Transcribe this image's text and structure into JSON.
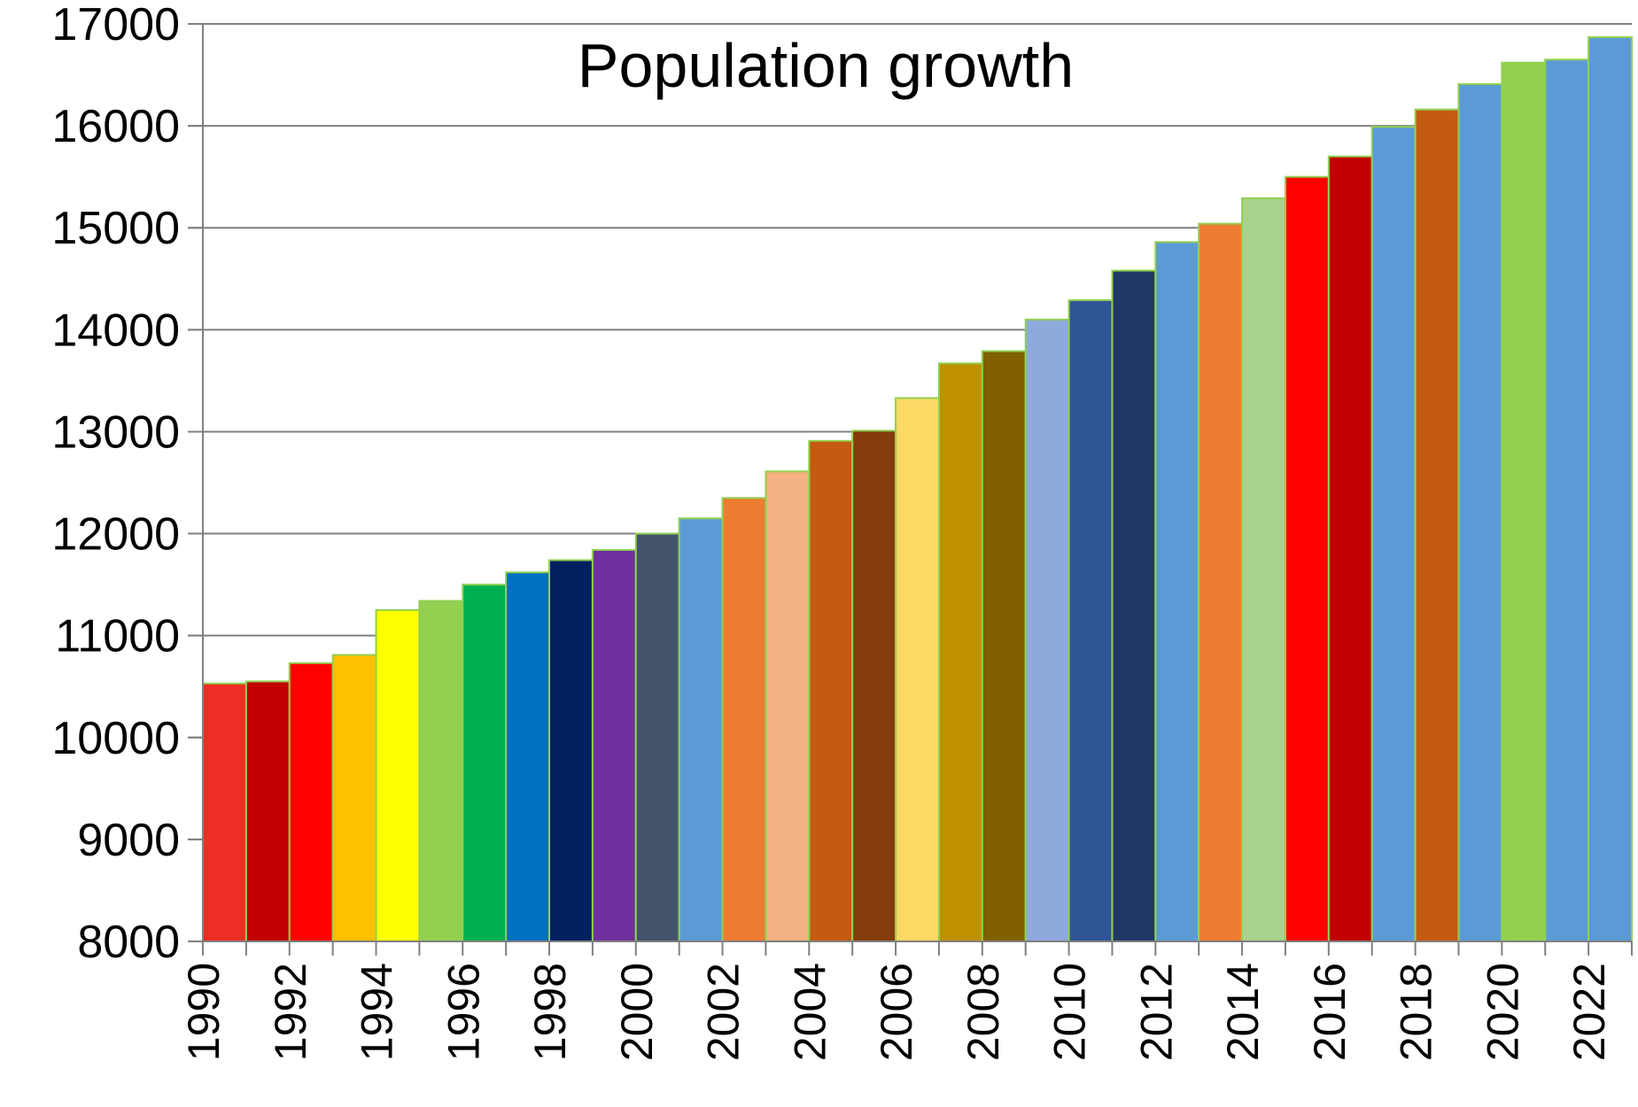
{
  "chart_data": {
    "type": "bar",
    "title": "Population growth",
    "xlabel": "",
    "ylabel": "",
    "ylim": [
      8000,
      17000
    ],
    "yticks": [
      8000,
      9000,
      10000,
      11000,
      12000,
      13000,
      14000,
      15000,
      16000,
      17000
    ],
    "grid": true,
    "legend": "none",
    "categories": [
      "1990",
      "1991",
      "1992",
      "1993",
      "1994",
      "1995",
      "1996",
      "1997",
      "1998",
      "1999",
      "2000",
      "2001",
      "2002",
      "2003",
      "2004",
      "2005",
      "2006",
      "2007",
      "2008",
      "2009",
      "2010",
      "2011",
      "2012",
      "2013",
      "2014",
      "2015",
      "2016",
      "2017",
      "2018",
      "2019",
      "2020",
      "2021",
      "2022"
    ],
    "x_tick_labels": [
      "1990",
      "",
      "1992",
      "",
      "1994",
      "",
      "1996",
      "",
      "1998",
      "",
      "2000",
      "",
      "2002",
      "",
      "2004",
      "",
      "2006",
      "",
      "2008",
      "",
      "2010",
      "",
      "2012",
      "",
      "2014",
      "",
      "2016",
      "",
      "2018",
      "",
      "2020",
      "",
      "2022"
    ],
    "values": [
      10530,
      10550,
      10730,
      10810,
      11250,
      11340,
      11500,
      11620,
      11740,
      11840,
      12000,
      12150,
      12350,
      12610,
      12910,
      13010,
      13330,
      13670,
      13790,
      14100,
      14290,
      14580,
      14860,
      15040,
      15290,
      15500,
      15700,
      15990,
      16160,
      16410,
      16620,
      16650,
      16870
    ],
    "bar_colors": [
      "#EE2D24",
      "#C00000",
      "#FF0000",
      "#FFC000",
      "#FFFF00",
      "#92D050",
      "#00B050",
      "#0070C0",
      "#002060",
      "#7030A0",
      "#44546A",
      "#5B9BD5",
      "#ED7D31",
      "#F4B183",
      "#C55A11",
      "#843C0C",
      "#FFD966",
      "#BF9000",
      "#806000",
      "#8EA9DB",
      "#2F5597",
      "#203864",
      "#5B9BD5",
      "#ED7D31",
      "#A9D18E",
      "#FF0000",
      "#C00000",
      "#5B9BD5",
      "#C55A11",
      "#5B9BD5",
      "#92D050",
      "#5B9BD5",
      "#5B9BD5"
    ],
    "bar_edge_color": "#92D050",
    "grid_color": "#808080",
    "axis_color": "#808080"
  }
}
